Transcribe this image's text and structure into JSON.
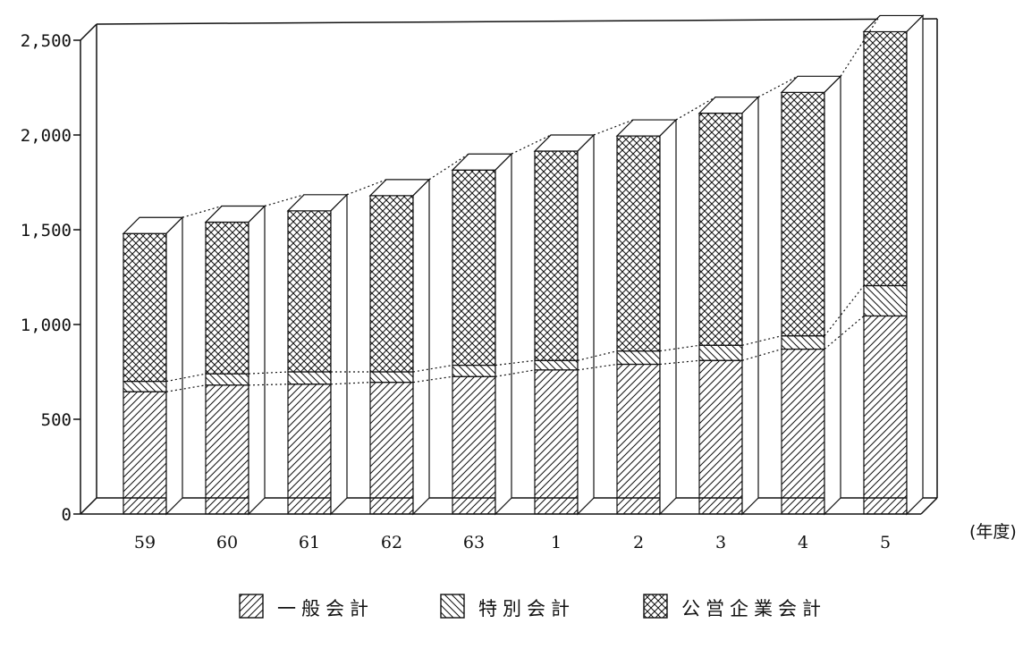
{
  "chart_data": {
    "type": "bar",
    "stacked": true,
    "style": "3d-hatched",
    "categories": [
      "59",
      "60",
      "61",
      "62",
      "63",
      "1",
      "2",
      "3",
      "4",
      "5"
    ],
    "x_unit_label": "(年度)",
    "ylim": [
      0,
      2500
    ],
    "yticks": [
      0,
      500,
      1000,
      1500,
      2000,
      2500
    ],
    "ytick_labels": [
      "0",
      "500",
      "1,000",
      "1,500",
      "2,000",
      "2,500"
    ],
    "grid": false,
    "legend_position": "bottom",
    "series": [
      {
        "name": "一般会計",
        "hatch": "forward-diagonal",
        "values": [
          645,
          680,
          685,
          695,
          725,
          760,
          790,
          810,
          870,
          1045
        ]
      },
      {
        "name": "特別会計",
        "hatch": "back-diagonal",
        "values": [
          55,
          60,
          65,
          55,
          60,
          50,
          70,
          80,
          70,
          160
        ]
      },
      {
        "name": "公営企業会計",
        "hatch": "crosshatch",
        "values": [
          780,
          800,
          850,
          930,
          1030,
          1105,
          1135,
          1225,
          1285,
          1340
        ]
      }
    ]
  }
}
